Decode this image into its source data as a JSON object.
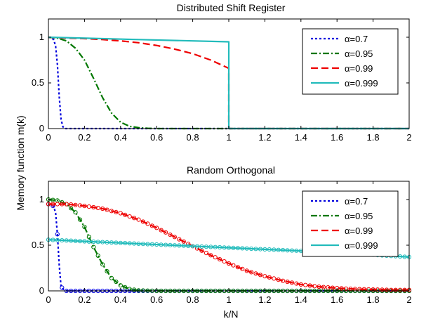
{
  "figure": {
    "ylabel": "Memory function m(k)",
    "xlabel": "k/N"
  },
  "chart_data": [
    {
      "type": "line",
      "title": "Distributed Shift Register",
      "xlim": [
        0,
        2
      ],
      "ylim": [
        0,
        1.2
      ],
      "xticks": [
        "0",
        "0.2",
        "0.4",
        "0.6",
        "0.8",
        "1",
        "1.2",
        "1.4",
        "1.6",
        "1.8",
        "2"
      ],
      "yticks": [
        "0",
        "0.5",
        "1"
      ],
      "legend": "top-right",
      "series": [
        {
          "name": "α=0.7",
          "color": "#0000dd",
          "style": "dotted",
          "x": [
            0,
            0.02,
            0.03,
            0.04,
            0.05,
            0.06,
            0.07,
            0.08,
            0.09,
            0.1,
            1,
            2
          ],
          "y": [
            1,
            0.99,
            0.97,
            0.9,
            0.7,
            0.35,
            0.1,
            0.02,
            0,
            0,
            0,
            0
          ]
        },
        {
          "name": "α=0.95",
          "color": "#007700",
          "style": "dashdot",
          "x": [
            0,
            0.05,
            0.1,
            0.15,
            0.2,
            0.25,
            0.3,
            0.35,
            0.4,
            0.45,
            0.5,
            0.55,
            0.6,
            1,
            2
          ],
          "y": [
            1,
            0.99,
            0.96,
            0.88,
            0.75,
            0.55,
            0.34,
            0.17,
            0.07,
            0.025,
            0.01,
            0.003,
            0,
            0,
            0
          ]
        },
        {
          "name": "α=0.99",
          "color": "#ee0000",
          "style": "dashed",
          "x": [
            0,
            0.1,
            0.2,
            0.3,
            0.4,
            0.5,
            0.6,
            0.7,
            0.8,
            0.9,
            1,
            1.0001,
            2
          ],
          "y": [
            1,
            0.99,
            0.985,
            0.975,
            0.96,
            0.94,
            0.91,
            0.87,
            0.82,
            0.75,
            0.66,
            0,
            0
          ]
        },
        {
          "name": "α=0.999",
          "color": "#22bbbb",
          "style": "solid",
          "x": [
            0,
            0.5,
            1,
            1.0001,
            2
          ],
          "y": [
            1,
            0.975,
            0.95,
            0,
            0
          ]
        }
      ]
    },
    {
      "type": "line",
      "title": "Random Orthogonal",
      "xlim": [
        0,
        2
      ],
      "ylim": [
        0,
        1.2
      ],
      "xticks": [
        "0",
        "0.2",
        "0.4",
        "0.6",
        "0.8",
        "1",
        "1.2",
        "1.4",
        "1.6",
        "1.8",
        "2"
      ],
      "yticks": [
        "0",
        "0.5",
        "1"
      ],
      "legend": "top-right",
      "series": [
        {
          "name": "α=0.7",
          "color": "#0000dd",
          "style": "dotted",
          "markers": "circle",
          "x": [
            0,
            0.02,
            0.03,
            0.04,
            0.05,
            0.06,
            0.07,
            0.08,
            0.1,
            0.15,
            2
          ],
          "y": [
            0.95,
            0.94,
            0.92,
            0.85,
            0.62,
            0.28,
            0.05,
            0.02,
            0,
            0,
            0
          ]
        },
        {
          "name": "α=0.95",
          "color": "#007700",
          "style": "dashdot",
          "markers": "circle",
          "x": [
            0,
            0.05,
            0.1,
            0.15,
            0.2,
            0.25,
            0.3,
            0.35,
            0.4,
            0.45,
            0.5,
            0.6,
            2
          ],
          "y": [
            1,
            0.99,
            0.95,
            0.86,
            0.7,
            0.48,
            0.29,
            0.14,
            0.06,
            0.02,
            0.005,
            0,
            0
          ]
        },
        {
          "name": "α=0.99",
          "color": "#ee0000",
          "style": "dashed",
          "markers": "circle",
          "x": [
            0,
            0.1,
            0.2,
            0.3,
            0.4,
            0.5,
            0.6,
            0.7,
            0.8,
            0.9,
            1,
            1.1,
            1.2,
            1.3,
            1.4,
            1.5,
            1.6,
            1.7,
            1.8,
            1.9,
            2
          ],
          "y": [
            0.95,
            0.95,
            0.93,
            0.9,
            0.85,
            0.78,
            0.69,
            0.59,
            0.49,
            0.39,
            0.3,
            0.22,
            0.16,
            0.11,
            0.07,
            0.045,
            0.03,
            0.02,
            0.015,
            0.01,
            0.01
          ]
        },
        {
          "name": "α=0.999",
          "color": "#22bbbb",
          "style": "solid",
          "markers": "circle",
          "x": [
            0,
            0.4,
            0.8,
            1.2,
            1.6,
            2
          ],
          "y": [
            0.56,
            0.525,
            0.49,
            0.455,
            0.42,
            0.37
          ]
        }
      ]
    }
  ]
}
